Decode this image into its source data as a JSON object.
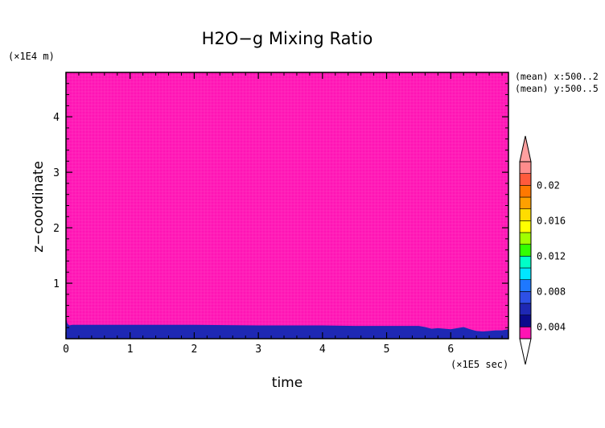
{
  "chart_data": {
    "type": "heatmap",
    "title": "H2O−g Mixing Ratio",
    "xlabel": "time",
    "ylabel": "z−coordinate",
    "x_unit": "(×1E5 sec)",
    "y_unit": "(×1E4 m)",
    "xlim": [
      0,
      6.9
    ],
    "ylim": [
      0,
      4.8
    ],
    "x_ticks": [
      0,
      1,
      2,
      3,
      4,
      5,
      6
    ],
    "x_tick_labels": [
      "0",
      "1",
      "2",
      "3",
      "4",
      "5",
      "6"
    ],
    "y_ticks": [
      1,
      2,
      3,
      4
    ],
    "y_tick_labels": [
      "1",
      "2",
      "3",
      "4"
    ],
    "annotations": [
      "(mean) x:500..2",
      "(mean) y:500..5"
    ],
    "background_level_color": "#ff14b4",
    "lower_layer_color": "#1e28b4",
    "lower_layer": {
      "x": [
        0,
        0.02,
        0.05,
        0.1,
        1.0,
        2.0,
        3.0,
        4.0,
        4.5,
        5.0,
        5.5,
        5.6,
        5.7,
        5.8,
        6.0,
        6.2,
        6.3,
        6.4,
        6.5,
        6.6,
        6.7,
        6.8,
        6.9
      ],
      "top": [
        0.38,
        0.28,
        0.24,
        0.25,
        0.25,
        0.25,
        0.24,
        0.24,
        0.23,
        0.23,
        0.23,
        0.21,
        0.18,
        0.19,
        0.17,
        0.21,
        0.17,
        0.14,
        0.13,
        0.14,
        0.15,
        0.15,
        0.17
      ]
    },
    "colorbar": {
      "levels": [
        "0.004",
        "0.008",
        "0.012",
        "0.016",
        "0.02"
      ],
      "colors": [
        "#ff14b4",
        "#0a0a8c",
        "#1e28b4",
        "#2d50e6",
        "#1e78ff",
        "#00e6ff",
        "#00ffc8",
        "#32ff00",
        "#a0ff00",
        "#ffff00",
        "#ffdc00",
        "#ffa000",
        "#ff7800",
        "#ff5a3c",
        "#ff8c8c"
      ],
      "over_color": "#ffa0a0",
      "under_color": "#ffffff"
    }
  }
}
